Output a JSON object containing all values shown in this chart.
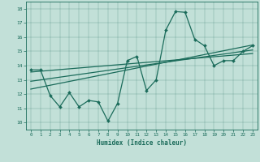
{
  "xlabel": "Humidex (Indice chaleur)",
  "xlim": [
    -0.5,
    23.5
  ],
  "ylim": [
    9.5,
    18.5
  ],
  "xticks": [
    0,
    1,
    2,
    3,
    4,
    5,
    6,
    7,
    8,
    9,
    10,
    11,
    12,
    13,
    14,
    15,
    16,
    17,
    18,
    19,
    20,
    21,
    22,
    23
  ],
  "yticks": [
    10,
    11,
    12,
    13,
    14,
    15,
    16,
    17,
    18
  ],
  "bg_color": "#c2e0d8",
  "line_color": "#1a6b5a",
  "data_x": [
    0,
    1,
    2,
    3,
    4,
    5,
    6,
    7,
    8,
    9,
    10,
    11,
    12,
    13,
    14,
    15,
    16,
    17,
    18,
    19,
    20,
    21,
    22,
    23
  ],
  "data_y": [
    13.7,
    13.7,
    11.9,
    11.1,
    12.1,
    11.1,
    11.55,
    11.45,
    10.1,
    11.35,
    14.35,
    14.65,
    12.25,
    13.0,
    16.5,
    17.8,
    17.75,
    15.85,
    15.4,
    14.0,
    14.35,
    14.35,
    15.0,
    15.4
  ],
  "trend1_x": [
    0,
    23
  ],
  "trend1_y": [
    13.55,
    14.85
  ],
  "trend2_x": [
    0,
    23
  ],
  "trend2_y": [
    12.9,
    15.1
  ],
  "trend3_x": [
    0,
    23
  ],
  "trend3_y": [
    12.35,
    15.45
  ]
}
